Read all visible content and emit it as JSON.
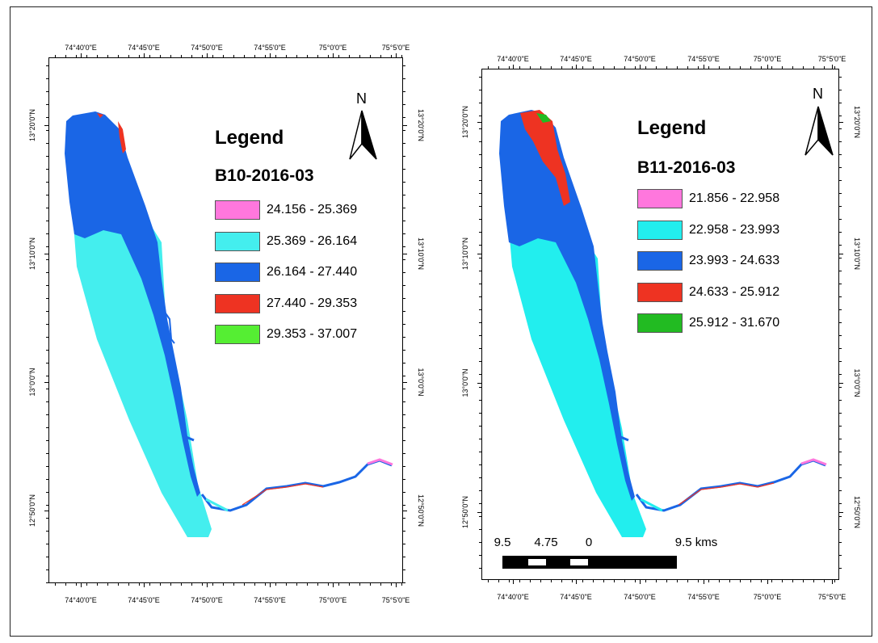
{
  "maps": [
    {
      "id": "b10",
      "legend_title": "Legend",
      "layer_name": "B10-2016-03",
      "classes": [
        {
          "range": "24.156 - 25.369",
          "color": "#ff77dd"
        },
        {
          "range": "25.369 - 26.164",
          "color": "#44eeee"
        },
        {
          "range": "26.164 - 27.440",
          "color": "#1a66e6"
        },
        {
          "range": "27.440 - 29.353",
          "color": "#ee3322"
        },
        {
          "range": "29.353 - 37.007",
          "color": "#55ee33"
        }
      ],
      "lon_labels": [
        "74°40'0\"E",
        "74°45'0\"E",
        "74°50'0\"E",
        "74°55'0\"E",
        "75°0'0\"E",
        "75°5'0\"E"
      ],
      "lat_labels": [
        "13°20'0\"N",
        "13°10'0\"N",
        "13°0'0\"N",
        "12°50'0\"N"
      ]
    },
    {
      "id": "b11",
      "legend_title": "Legend",
      "layer_name": "B11-2016-03",
      "classes": [
        {
          "range": "21.856 - 22.958",
          "color": "#ff77dd"
        },
        {
          "range": "22.958 - 23.993",
          "color": "#22eeee"
        },
        {
          "range": "23.993 - 24.633",
          "color": "#1a66e6"
        },
        {
          "range": "24.633 - 25.912",
          "color": "#ee3322"
        },
        {
          "range": "25.912 - 31.670",
          "color": "#22bb22"
        }
      ],
      "lon_labels": [
        "74°40'0\"E",
        "74°45'0\"E",
        "74°50'0\"E",
        "74°55'0\"E",
        "75°0'0\"E",
        "75°5'0\"E"
      ],
      "lat_labels": [
        "13°20'0\"N",
        "13°10'0\"N",
        "13°0'0\"N",
        "12°50'0\"N"
      ]
    }
  ],
  "north_letter": "N",
  "scale_bar": {
    "labels": [
      "9.5",
      "4.75",
      "0",
      "9.5 kms"
    ]
  }
}
